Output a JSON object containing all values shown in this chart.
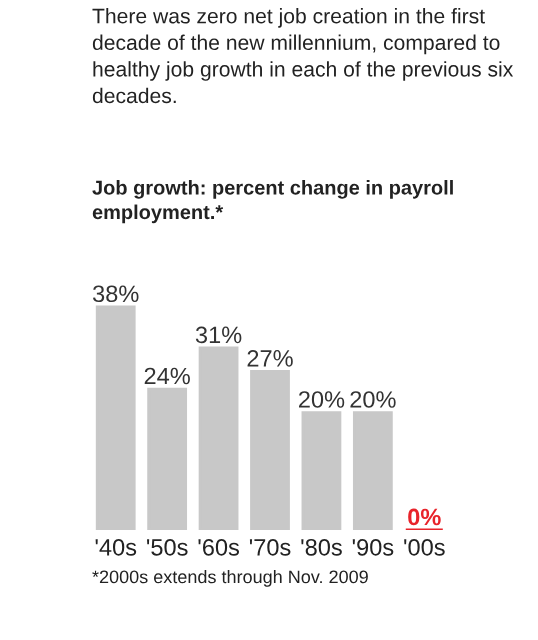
{
  "chart_data": {
    "type": "bar",
    "title": "There was zero net job creation in the first decade of the new millennium, compared to healthy job growth in each of the previous six decades.",
    "subtitle": "Job growth: percent change in payroll employment.*",
    "categories": [
      "'40s",
      "'50s",
      "'60s",
      "'70s",
      "'80s",
      "'90s",
      "'00s"
    ],
    "values": [
      38,
      24,
      31,
      27,
      20,
      20,
      0
    ],
    "value_labels": [
      "38%",
      "24%",
      "31%",
      "27%",
      "20%",
      "20%",
      "0%"
    ],
    "colors": [
      "#c8c8c8",
      "#c8c8c8",
      "#c8c8c8",
      "#c8c8c8",
      "#c8c8c8",
      "#c8c8c8",
      "#e8232a"
    ],
    "annotations": [
      "*2000s extends through Nov. 2009"
    ]
  }
}
